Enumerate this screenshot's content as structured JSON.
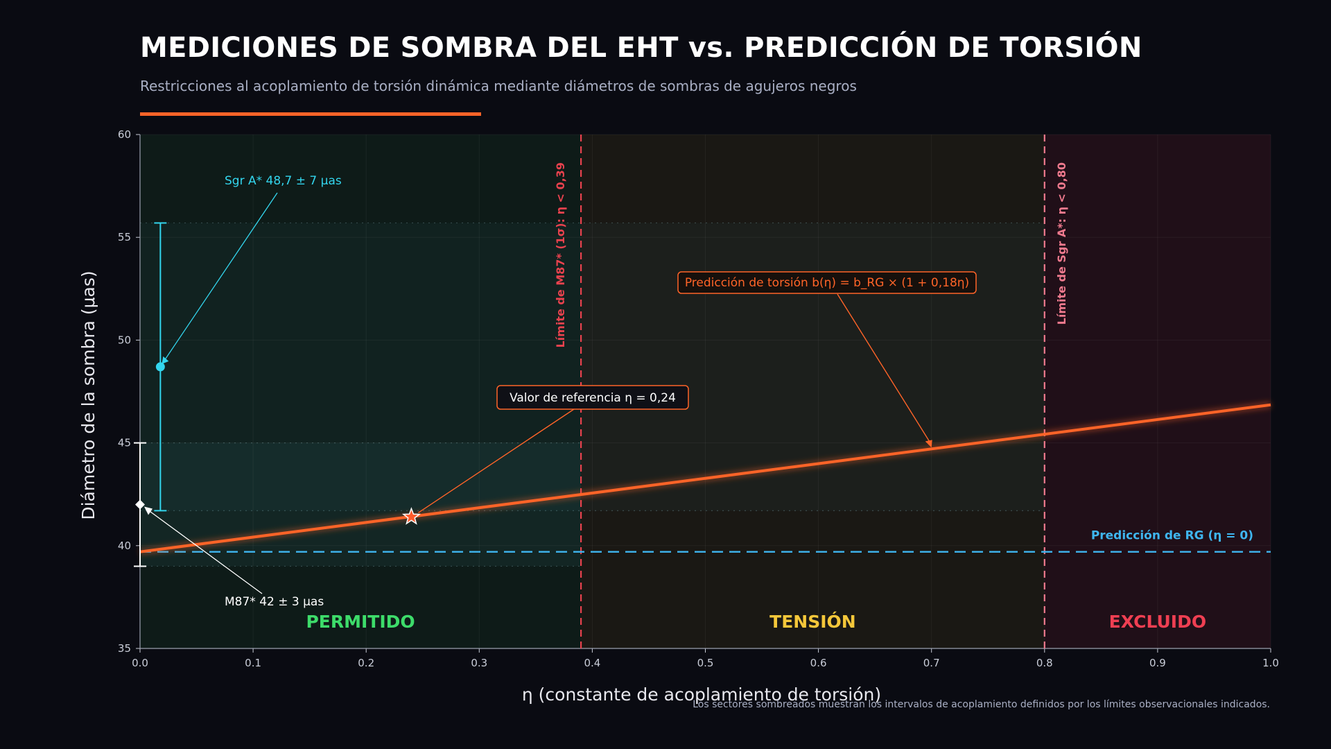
{
  "header": {
    "title": "MEDICIONES DE SOMBRA DEL EHT vs. PREDICCIÓN DE TORSIÓN",
    "subtitle": "Restricciones al acoplamiento de torsión dinámica mediante diámetros de sombras de agujeros negros"
  },
  "footnote": "Los sectores sombreados muestran los intervalos de acoplamiento definidos por los límites observacionales indicados.",
  "colors": {
    "accent": "#ff6428",
    "torsion_line": "#ff6428",
    "gr_line": "#3fb6f0",
    "sgr": "#33d6ee",
    "m87": "#ffffff",
    "limit_m87": "#e8424e",
    "limit_sgr": "#f07a8e",
    "allowed": "#3ddc6a",
    "tension": "#f5c73a",
    "excluded": "#ef3f52"
  },
  "chart_data": {
    "type": "line",
    "title": "MEDICIONES DE SOMBRA DEL EHT vs. PREDICCIÓN DE TORSIÓN",
    "xlabel": "η  (constante de acoplamiento de torsión)",
    "ylabel": "Diámetro de la sombra  (μas)",
    "xlim": [
      0.0,
      1.0
    ],
    "ylim": [
      35,
      60
    ],
    "xticks": [
      "0.0",
      "0.1",
      "0.2",
      "0.3",
      "0.4",
      "0.5",
      "0.6",
      "0.7",
      "0.8",
      "0.9",
      "1.0"
    ],
    "yticks": [
      "35",
      "40",
      "45",
      "50",
      "55",
      "60"
    ],
    "grid": true,
    "series": [
      {
        "name": "Predicción de torsión  b(η) = b_RG × (1 + 0,18η)",
        "kind": "line",
        "x": [
          0.0,
          1.0
        ],
        "y": [
          39.7,
          46.85
        ]
      },
      {
        "name": "Predicción de RG  (η = 0)",
        "kind": "hline",
        "y": 39.7
      }
    ],
    "measurements": [
      {
        "label": "Sgr A*  48,7 ± 7 μas",
        "x": 0.018,
        "y": 48.7,
        "err_low": 41.7,
        "err_high": 55.7
      },
      {
        "label": "M87*  42 ± 3 μas",
        "x": 0.0,
        "y": 42.0,
        "err_low": 39.0,
        "err_high": 45.0
      }
    ],
    "bands": [
      {
        "y_low": 41.7,
        "y_high": 55.7
      },
      {
        "y_low": 39.0,
        "y_high": 45.0
      }
    ],
    "limits": [
      {
        "x": 0.39,
        "label": "Límite de M87* (1σ):  η < 0,39"
      },
      {
        "x": 0.8,
        "label": "Límite de Sgr A*:  η < 0,80"
      }
    ],
    "regions": [
      {
        "label": "PERMITIDO",
        "x_from": 0.0,
        "x_to": 0.39
      },
      {
        "label": "TENSIÓN",
        "x_from": 0.39,
        "x_to": 0.8
      },
      {
        "label": "EXCLUIDO",
        "x_from": 0.8,
        "x_to": 1.0
      }
    ],
    "reference": {
      "label": "Valor de referencia  η = 0,24",
      "x": 0.24,
      "y": 41.4
    },
    "annotations": {
      "torsion_label": "Predicción de torsión  b(η) = b_RG × (1 + 0,18η)",
      "torsion_arrow_x": 0.7,
      "gr_label": "Predicción de RG  (η = 0)"
    }
  }
}
